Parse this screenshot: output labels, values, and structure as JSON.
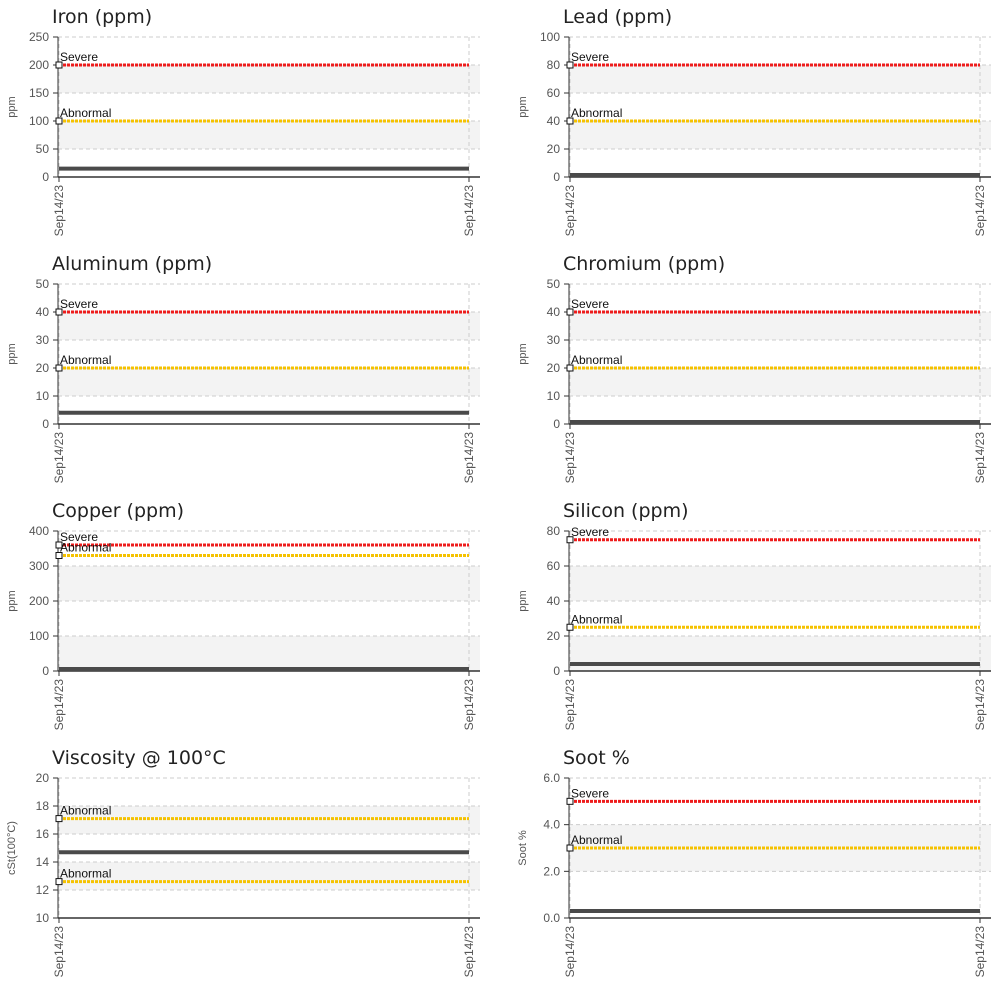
{
  "colors": {
    "severe": "#ee1c1c",
    "abnormal": "#f5c200",
    "series": "#4a4a4a",
    "band": "#f3f3f3",
    "grid": "#cccccc",
    "axis": "#333333"
  },
  "chart_data": [
    {
      "type": "line",
      "title": "Iron (ppm)",
      "ylabel": "ppm",
      "ylim": [
        0,
        250
      ],
      "yticks": [
        "0",
        "50",
        "100",
        "150",
        "200",
        "250"
      ],
      "yticks_values": [
        0,
        50,
        100,
        150,
        200,
        250
      ],
      "x": [
        "Sep14/23",
        "Sep14/23"
      ],
      "series": [
        {
          "values": [
            15,
            15
          ]
        }
      ],
      "thresholds": [
        {
          "label": "Severe",
          "value": 200,
          "level": "severe"
        },
        {
          "label": "Abnormal",
          "value": 100,
          "level": "abnormal"
        }
      ]
    },
    {
      "type": "line",
      "title": "Lead (ppm)",
      "ylabel": "ppm",
      "ylim": [
        0,
        100
      ],
      "yticks": [
        "0",
        "20",
        "40",
        "60",
        "80",
        "100"
      ],
      "yticks_values": [
        0,
        20,
        40,
        60,
        80,
        100
      ],
      "x": [
        "Sep14/23",
        "Sep14/23"
      ],
      "series": [
        {
          "values": [
            0,
            0
          ]
        }
      ],
      "thresholds": [
        {
          "label": "Severe",
          "value": 80,
          "level": "severe"
        },
        {
          "label": "Abnormal",
          "value": 40,
          "level": "abnormal"
        }
      ]
    },
    {
      "type": "line",
      "title": "Aluminum (ppm)",
      "ylabel": "ppm",
      "ylim": [
        0,
        50
      ],
      "yticks": [
        "0",
        "10",
        "20",
        "30",
        "40",
        "50"
      ],
      "yticks_values": [
        0,
        10,
        20,
        30,
        40,
        50
      ],
      "x": [
        "Sep14/23",
        "Sep14/23"
      ],
      "series": [
        {
          "values": [
            4,
            4
          ]
        }
      ],
      "thresholds": [
        {
          "label": "Severe",
          "value": 40,
          "level": "severe"
        },
        {
          "label": "Abnormal",
          "value": 20,
          "level": "abnormal"
        }
      ]
    },
    {
      "type": "line",
      "title": "Chromium (ppm)",
      "ylabel": "ppm",
      "ylim": [
        0,
        50
      ],
      "yticks": [
        "0",
        "10",
        "20",
        "30",
        "40",
        "50"
      ],
      "yticks_values": [
        0,
        10,
        20,
        30,
        40,
        50
      ],
      "x": [
        "Sep14/23",
        "Sep14/23"
      ],
      "series": [
        {
          "values": [
            0.5,
            0.5
          ]
        }
      ],
      "thresholds": [
        {
          "label": "Severe",
          "value": 40,
          "level": "severe"
        },
        {
          "label": "Abnormal",
          "value": 20,
          "level": "abnormal"
        }
      ]
    },
    {
      "type": "line",
      "title": "Copper (ppm)",
      "ylabel": "ppm",
      "ylim": [
        0,
        400
      ],
      "yticks": [
        "0",
        "100",
        "200",
        "300",
        "400"
      ],
      "yticks_values": [
        0,
        100,
        200,
        300,
        400
      ],
      "x": [
        "Sep14/23",
        "Sep14/23"
      ],
      "series": [
        {
          "values": [
            0,
            0
          ]
        }
      ],
      "thresholds": [
        {
          "label": "Severe",
          "value": 360,
          "level": "severe"
        },
        {
          "label": "Abnormal",
          "value": 330,
          "level": "abnormal"
        }
      ]
    },
    {
      "type": "line",
      "title": "Silicon (ppm)",
      "ylabel": "ppm",
      "ylim": [
        0,
        80
      ],
      "yticks": [
        "0",
        "20",
        "40",
        "60",
        "80"
      ],
      "yticks_values": [
        0,
        20,
        40,
        60,
        80
      ],
      "x": [
        "Sep14/23",
        "Sep14/23"
      ],
      "series": [
        {
          "values": [
            4,
            4
          ]
        }
      ],
      "thresholds": [
        {
          "label": "Severe",
          "value": 75,
          "level": "severe"
        },
        {
          "label": "Abnormal",
          "value": 25,
          "level": "abnormal"
        }
      ]
    },
    {
      "type": "line",
      "title": "Viscosity @ 100°C",
      "ylabel": "cSt(100°C)",
      "ylim": [
        10,
        20
      ],
      "yticks": [
        "10",
        "12",
        "14",
        "16",
        "18",
        "20"
      ],
      "yticks_values": [
        10,
        12,
        14,
        16,
        18,
        20
      ],
      "x": [
        "Sep14/23",
        "Sep14/23"
      ],
      "series": [
        {
          "values": [
            14.7,
            14.7
          ]
        }
      ],
      "thresholds": [
        {
          "label": "Abnormal",
          "value": 17.1,
          "level": "abnormal"
        },
        {
          "label": "Abnormal",
          "value": 12.6,
          "level": "abnormal"
        }
      ]
    },
    {
      "type": "line",
      "title": "Soot %",
      "ylabel": "Soot %",
      "ylim": [
        0,
        6
      ],
      "yticks": [
        "0.0",
        "2.0",
        "4.0",
        "6.0"
      ],
      "yticks_values": [
        0,
        2,
        4,
        6
      ],
      "x": [
        "Sep14/23",
        "Sep14/23"
      ],
      "series": [
        {
          "values": [
            0.3,
            0.3
          ]
        }
      ],
      "thresholds": [
        {
          "label": "Severe",
          "value": 5,
          "level": "severe"
        },
        {
          "label": "Abnormal",
          "value": 3,
          "level": "abnormal"
        }
      ]
    }
  ]
}
